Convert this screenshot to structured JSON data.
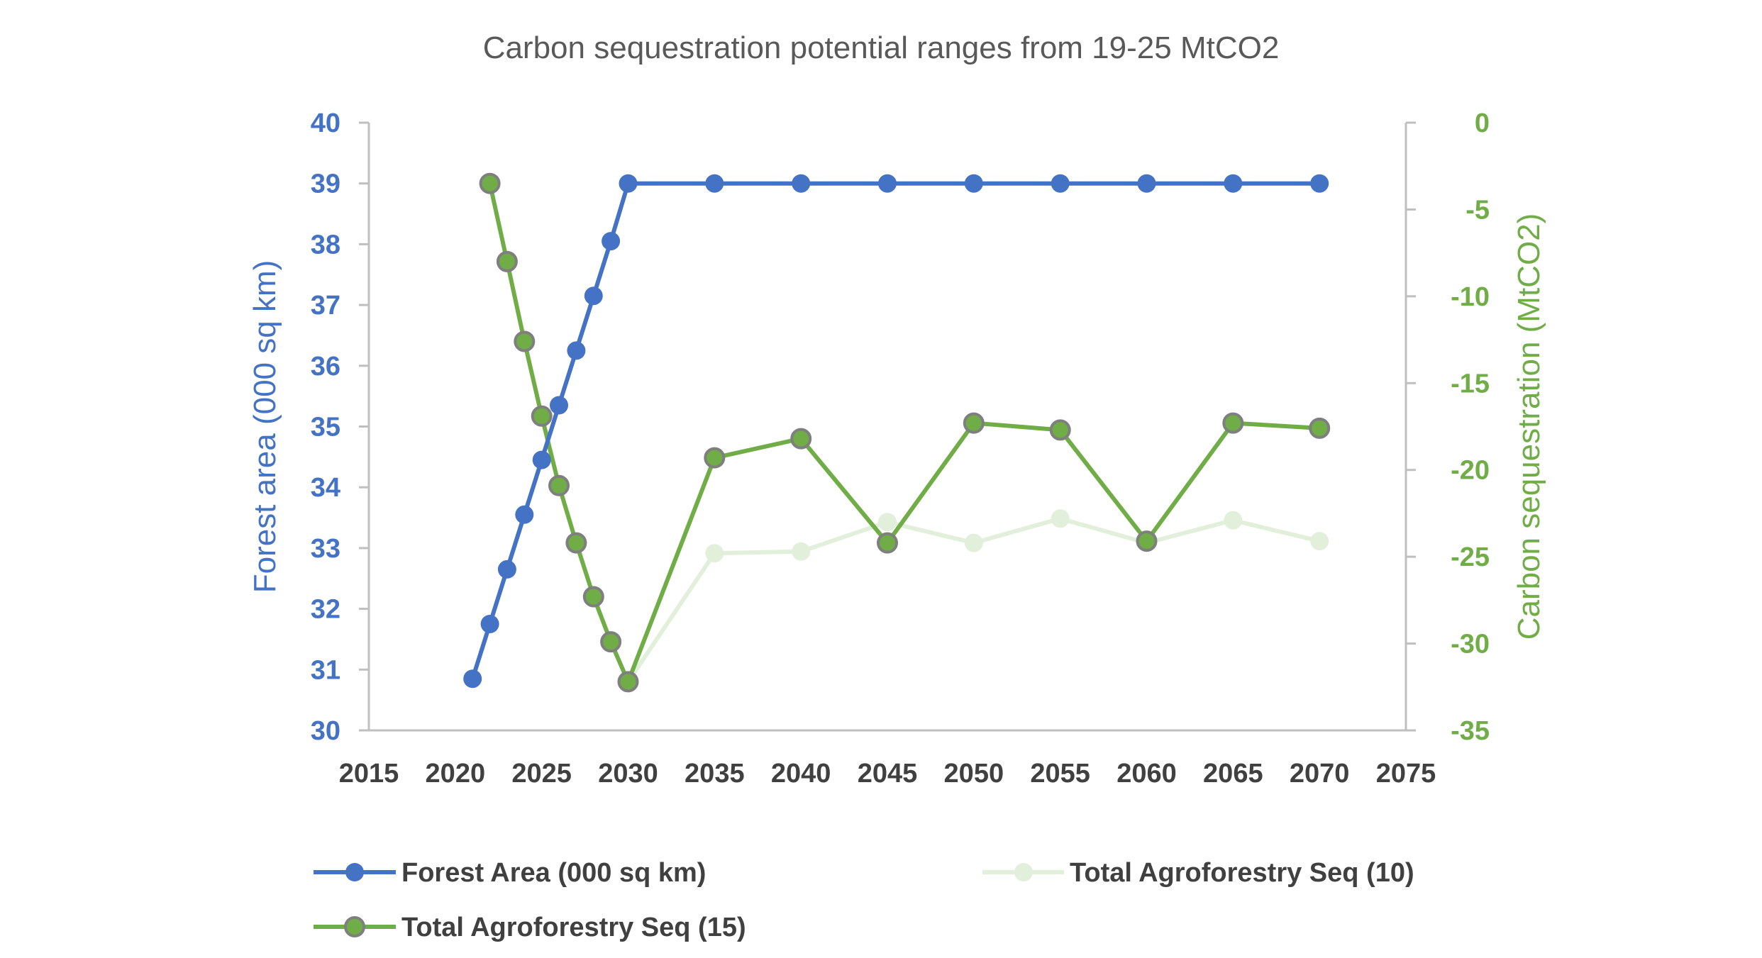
{
  "chart_data": {
    "type": "line",
    "title": "Carbon sequestration potential ranges from 19-25 MtCO2",
    "xlabel": "",
    "xlim": [
      2015,
      2075
    ],
    "x_ticks": [
      "2015",
      "2020",
      "2025",
      "2030",
      "2035",
      "2040",
      "2045",
      "2050",
      "2055",
      "2060",
      "2065",
      "2070",
      "2075"
    ],
    "y_left": {
      "label": "Forest area (000 sq km)",
      "lim": [
        30,
        40
      ],
      "ticks": [
        "30",
        "31",
        "32",
        "33",
        "34",
        "35",
        "36",
        "37",
        "38",
        "39",
        "40"
      ]
    },
    "y_right": {
      "label": "Carbon sequestration (MtCO2)",
      "lim": [
        -35,
        0
      ],
      "ticks": [
        "-35",
        "-30",
        "-25",
        "-20",
        "-15",
        "-10",
        "-5",
        "0"
      ]
    },
    "legend_position": "bottom",
    "series": [
      {
        "name": "Forest Area (000 sq km)",
        "axis": "left",
        "color": "#4472C4",
        "x": [
          2021,
          2022,
          2023,
          2024,
          2025,
          2026,
          2027,
          2028,
          2029,
          2030,
          2035,
          2040,
          2045,
          2050,
          2055,
          2060,
          2065,
          2070
        ],
        "y": [
          30.85,
          31.75,
          32.65,
          33.55,
          34.45,
          35.35,
          36.25,
          37.15,
          38.05,
          39,
          39,
          39,
          39,
          39,
          39,
          39,
          39,
          39
        ]
      },
      {
        "name": "Total Agroforestry Seq (10)",
        "axis": "right",
        "color": "#E2EFDA",
        "x": [
          2030,
          2035,
          2040,
          2045,
          2050,
          2055,
          2060,
          2065,
          2070
        ],
        "y": [
          -32.2,
          -24.8,
          -24.7,
          -23.0,
          -24.2,
          -22.8,
          -24.2,
          -22.9,
          -24.1
        ]
      },
      {
        "name": "Total Agroforestry Seq (15)",
        "axis": "right",
        "color": "#70AD47",
        "x": [
          2022,
          2023,
          2024,
          2025,
          2026,
          2027,
          2028,
          2029,
          2030,
          2035,
          2040,
          2045,
          2050,
          2055,
          2060,
          2065,
          2070
        ],
        "y": [
          -3.5,
          -8.0,
          -12.6,
          -16.9,
          -20.9,
          -24.2,
          -27.3,
          -29.9,
          -32.2,
          -19.3,
          -18.2,
          -24.2,
          -17.3,
          -17.7,
          -24.1,
          -17.3,
          -17.6
        ]
      }
    ]
  }
}
